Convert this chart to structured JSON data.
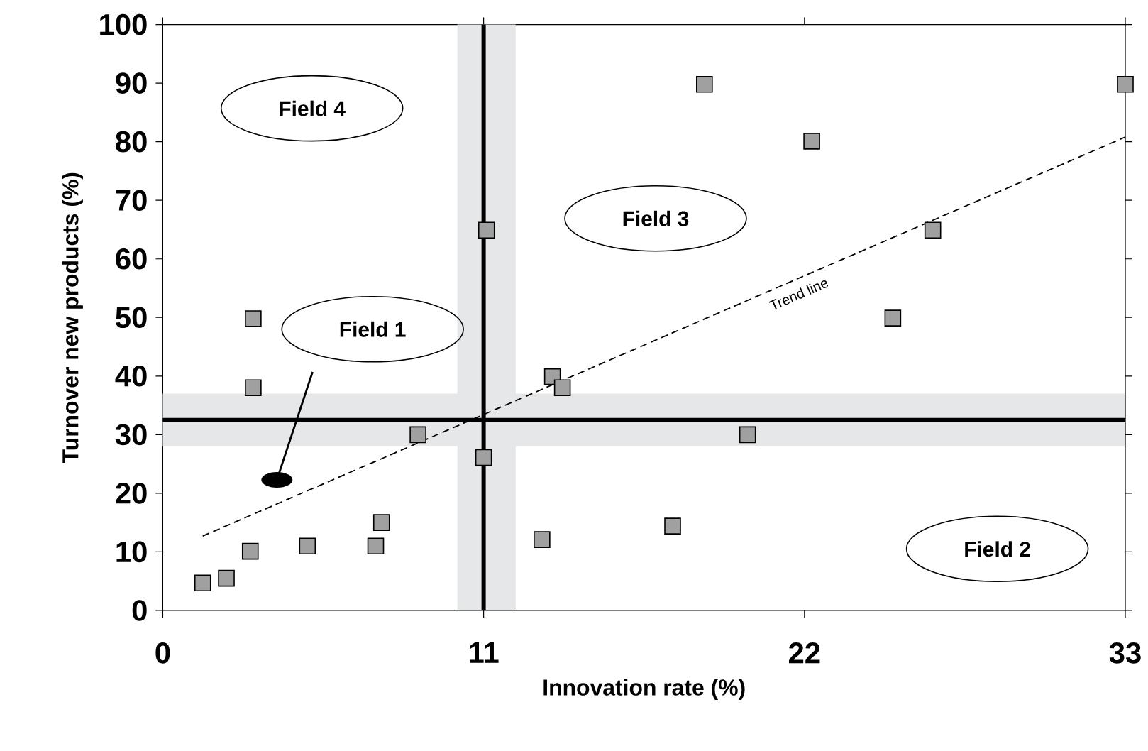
{
  "chart_data": {
    "type": "scatter",
    "xlabel": "Innovation rate (%)",
    "ylabel": "Turnover  new products  (%)",
    "xlim": [
      0,
      33
    ],
    "xticks": [
      0,
      11,
      22,
      33
    ],
    "ylim": [
      0,
      100
    ],
    "yticks": [
      0,
      10,
      20,
      30,
      40,
      50,
      60,
      70,
      80,
      90,
      100
    ],
    "marker": "square",
    "grid": false,
    "series": [
      {
        "color": "#a0a0a0",
        "x": [
          1.37,
          2.18,
          3.0,
          3.1,
          3.1,
          4.96,
          7.3,
          7.5,
          8.75,
          11.0,
          11.1,
          13.0,
          13.36,
          13.7,
          17.48,
          18.57,
          20.05,
          22.25,
          25.03,
          26.4,
          33.0
        ],
        "values": [
          4.7,
          5.5,
          10.1,
          49.8,
          38.0,
          11.0,
          11.0,
          15.0,
          30.0,
          26.1,
          64.9,
          12.1,
          39.9,
          38.0,
          14.4,
          89.8,
          30.0,
          80.1,
          49.9,
          64.9,
          89.8
        ]
      },
      {
        "type": "line",
        "name": "Trend line",
        "color": "#000000",
        "line_style": "dashed",
        "marker": "none",
        "x": [
          1.37,
          33.0
        ],
        "values": [
          12.7,
          80.8
        ]
      }
    ],
    "ref_lines": [
      {
        "axis": "x",
        "value": 11,
        "color": "#000000"
      },
      {
        "axis": "y",
        "value": 32.5,
        "color": "#000000"
      }
    ],
    "bands": [
      {
        "axis": "x",
        "from": 10.1,
        "to": 12.1,
        "color": "#e6e7e9"
      },
      {
        "axis": "y",
        "from": 28,
        "to": 37,
        "color": "#e6e7e9"
      }
    ],
    "annotations": [
      "Field 4",
      "Field 3",
      "Field 1",
      "Field 2"
    ]
  }
}
